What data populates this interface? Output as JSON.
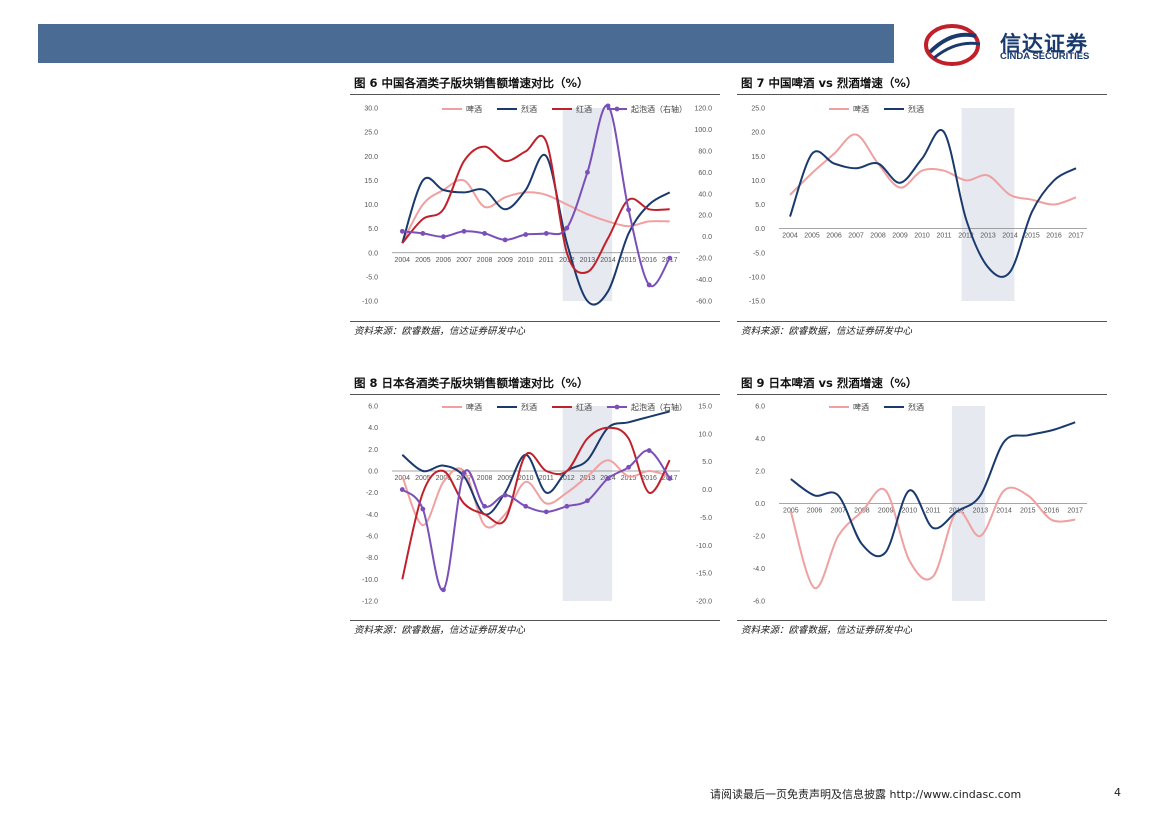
{
  "header": {
    "logo_cn": "信达证券",
    "logo_en": "CINDA SECURITIES",
    "brand_color": "#4a6b94"
  },
  "footer": {
    "text": "请阅读最后一页免责声明及信息披露 http://www.cindasc.com",
    "page": "4"
  },
  "colors": {
    "beer": "#f0a0a0",
    "spirits": "#1a3a6e",
    "wine": "#c0202a",
    "sparkling": "#7a50b8",
    "shade": "#e6e9f0"
  },
  "figures": [
    {
      "title": "图 6 中国各酒类子版块销售额增速对比（%）",
      "source": "资料来源：欧睿数据，信达证券研发中心"
    },
    {
      "title": "图 7 中国啤酒 vs 烈酒增速（%）",
      "source": "资料来源：欧睿数据，信达证券研发中心"
    },
    {
      "title": "图 8 日本各酒类子版块销售额增速对比（%）",
      "source": "资料来源：欧睿数据，信达证券研发中心"
    },
    {
      "title": "图 9 日本啤酒 vs 烈酒增速（%）",
      "source": "资料来源：欧睿数据，信达证券研发中心"
    }
  ],
  "chart_data": [
    {
      "type": "line",
      "categories": [
        "2004",
        "2005",
        "2006",
        "2007",
        "2008",
        "2009",
        "2010",
        "2011",
        "2012",
        "2013",
        "2014",
        "2015",
        "2016",
        "2017"
      ],
      "ylim": [
        -10,
        30
      ],
      "yticks": [
        "30.0",
        "25.0",
        "20.0",
        "15.0",
        "10.0",
        "5.0",
        "0.0",
        "-5.0",
        "-10.0"
      ],
      "y2lim": [
        -60,
        120
      ],
      "y2ticks": [
        "120.0",
        "100.0",
        "80.0",
        "60.0",
        "40.0",
        "20.0",
        "0.0",
        "-20.0",
        "-40.0",
        "-60.0"
      ],
      "shaded": [
        "2012",
        "2014"
      ],
      "legend": "top",
      "series": [
        {
          "name": "啤酒",
          "color": "beer",
          "axis": "left",
          "values": [
            2.0,
            10.0,
            13.0,
            15.0,
            9.5,
            11.5,
            12.5,
            12.0,
            10.0,
            8.0,
            6.5,
            5.5,
            6.5,
            6.5
          ]
        },
        {
          "name": "烈酒",
          "color": "spirits",
          "axis": "left",
          "values": [
            2.0,
            15.0,
            13.0,
            12.5,
            13.0,
            9.0,
            13.0,
            20.0,
            2.0,
            -10.0,
            -8.0,
            4.0,
            10.0,
            12.5
          ]
        },
        {
          "name": "红酒",
          "color": "wine",
          "axis": "left",
          "values": [
            2.0,
            7.0,
            9.0,
            19.0,
            22.0,
            19.0,
            21.0,
            23.0,
            0.0,
            -4.0,
            3.0,
            11.0,
            9.0,
            9.0
          ]
        },
        {
          "name": "起泡酒（右轴）",
          "color": "sparkling",
          "axis": "right",
          "values": [
            5.0,
            3.0,
            0.0,
            5.0,
            3.0,
            -3.0,
            2.0,
            3.0,
            8.0,
            60.0,
            122.0,
            25.0,
            -45.0,
            -20.0
          ]
        }
      ]
    },
    {
      "type": "line",
      "categories": [
        "2004",
        "2005",
        "2006",
        "2007",
        "2008",
        "2009",
        "2010",
        "2011",
        "2012",
        "2013",
        "2014",
        "2015",
        "2016",
        "2017"
      ],
      "ylim": [
        -15,
        25
      ],
      "yticks": [
        "25.0",
        "20.0",
        "15.0",
        "10.0",
        "5.0",
        "0.0",
        "-5.0",
        "-10.0",
        "-15.0"
      ],
      "shaded": [
        "2012",
        "2014"
      ],
      "legend": "top",
      "series": [
        {
          "name": "啤酒",
          "color": "beer",
          "values": [
            7.0,
            11.5,
            15.5,
            19.5,
            13.5,
            8.5,
            12.0,
            12.0,
            10.0,
            11.0,
            7.0,
            6.0,
            5.0,
            6.5
          ]
        },
        {
          "name": "烈酒",
          "color": "spirits",
          "values": [
            2.5,
            15.5,
            13.5,
            12.5,
            13.5,
            9.5,
            14.5,
            20.0,
            2.0,
            -8.0,
            -9.0,
            3.5,
            10.0,
            12.5
          ]
        }
      ]
    },
    {
      "type": "line",
      "categories": [
        "2004",
        "2005",
        "2006",
        "2007",
        "2008",
        "2009",
        "2010",
        "2011",
        "2012",
        "2013",
        "2014",
        "2015",
        "2016",
        "2017"
      ],
      "ylim": [
        -12,
        6
      ],
      "yticks": [
        "6.0",
        "4.0",
        "2.0",
        "0.0",
        "-2.0",
        "-4.0",
        "-6.0",
        "-8.0",
        "-10.0",
        "-12.0"
      ],
      "y2lim": [
        -20,
        15
      ],
      "y2ticks": [
        "15.0",
        "10.0",
        "5.0",
        "0.0",
        "-5.0",
        "-10.0",
        "-15.0",
        "-20.0"
      ],
      "shaded": [
        "2012",
        "2014"
      ],
      "legend": "top",
      "series": [
        {
          "name": "啤酒",
          "color": "beer",
          "axis": "left",
          "values": [
            -0.5,
            -5.0,
            -1.0,
            0.0,
            -5.0,
            -4.0,
            -1.0,
            -3.0,
            -2.0,
            -0.5,
            1.0,
            -0.5,
            0.0,
            -0.5
          ]
        },
        {
          "name": "烈酒",
          "color": "spirits",
          "axis": "left",
          "values": [
            1.5,
            0.0,
            0.5,
            -0.5,
            -4.0,
            -2.0,
            1.5,
            -2.0,
            0.0,
            1.0,
            4.0,
            4.5,
            5.0,
            5.5
          ]
        },
        {
          "name": "红酒",
          "color": "wine",
          "axis": "left",
          "values": [
            -10.0,
            -2.0,
            0.0,
            -3.0,
            -4.0,
            -4.5,
            1.5,
            0.0,
            0.0,
            3.0,
            4.0,
            3.0,
            -2.0,
            1.0
          ]
        },
        {
          "name": "起泡酒（右轴）",
          "color": "sparkling",
          "axis": "right",
          "values": [
            0.0,
            -3.5,
            -18.0,
            3.0,
            -3.0,
            -1.0,
            -3.0,
            -4.0,
            -3.0,
            -2.0,
            2.0,
            4.0,
            7.0,
            2.0
          ]
        }
      ]
    },
    {
      "type": "line",
      "categories": [
        "2005",
        "2006",
        "2007",
        "2008",
        "2009",
        "2010",
        "2011",
        "2012",
        "2013",
        "2014",
        "2015",
        "2016",
        "2017"
      ],
      "ylim": [
        -6,
        6
      ],
      "yticks": [
        "6.0",
        "4.0",
        "2.0",
        "0.0",
        "-2.0",
        "-4.0",
        "-6.0"
      ],
      "shaded": [
        "2012",
        "2013"
      ],
      "legend": "top",
      "series": [
        {
          "name": "啤酒",
          "color": "beer",
          "values": [
            -0.5,
            -5.2,
            -2.0,
            -0.5,
            0.8,
            -3.5,
            -4.5,
            -0.5,
            -2.0,
            0.8,
            0.5,
            -1.0,
            -1.0
          ]
        },
        {
          "name": "烈酒",
          "color": "spirits",
          "values": [
            1.5,
            0.5,
            0.5,
            -2.5,
            -3.0,
            0.8,
            -1.5,
            -0.5,
            0.5,
            3.8,
            4.2,
            4.5,
            5.0
          ]
        }
      ]
    }
  ]
}
